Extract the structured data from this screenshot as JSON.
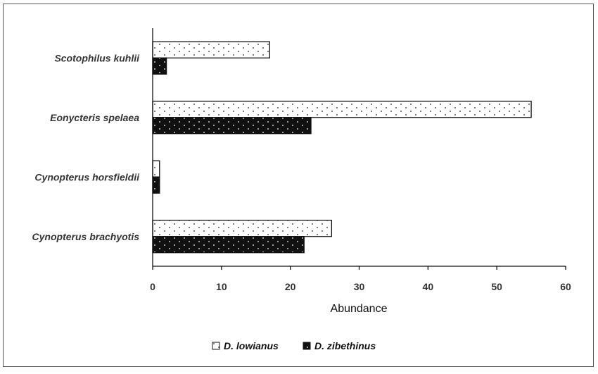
{
  "chart_data": {
    "type": "bar",
    "orientation": "horizontal",
    "categories": [
      "Scotophilus kuhlii",
      "Eonycteris spelaea",
      "Cynopterus horsfieldii",
      "Cynopterus brachyotis"
    ],
    "series": [
      {
        "name": "D. lowianus",
        "values": [
          17,
          55,
          1,
          26
        ],
        "fill": "#ffffff",
        "pattern": "dots-dark"
      },
      {
        "name": "D. zibethinus",
        "values": [
          2,
          23,
          1,
          22
        ],
        "fill": "#111111",
        "pattern": "dots-light"
      }
    ],
    "xlabel": "Abundance",
    "ylabel": "",
    "xlim": [
      0,
      60
    ],
    "xticks": [
      "0",
      "10",
      "20",
      "30",
      "40",
      "50",
      "60"
    ],
    "legend_position": "bottom",
    "grid": false
  }
}
